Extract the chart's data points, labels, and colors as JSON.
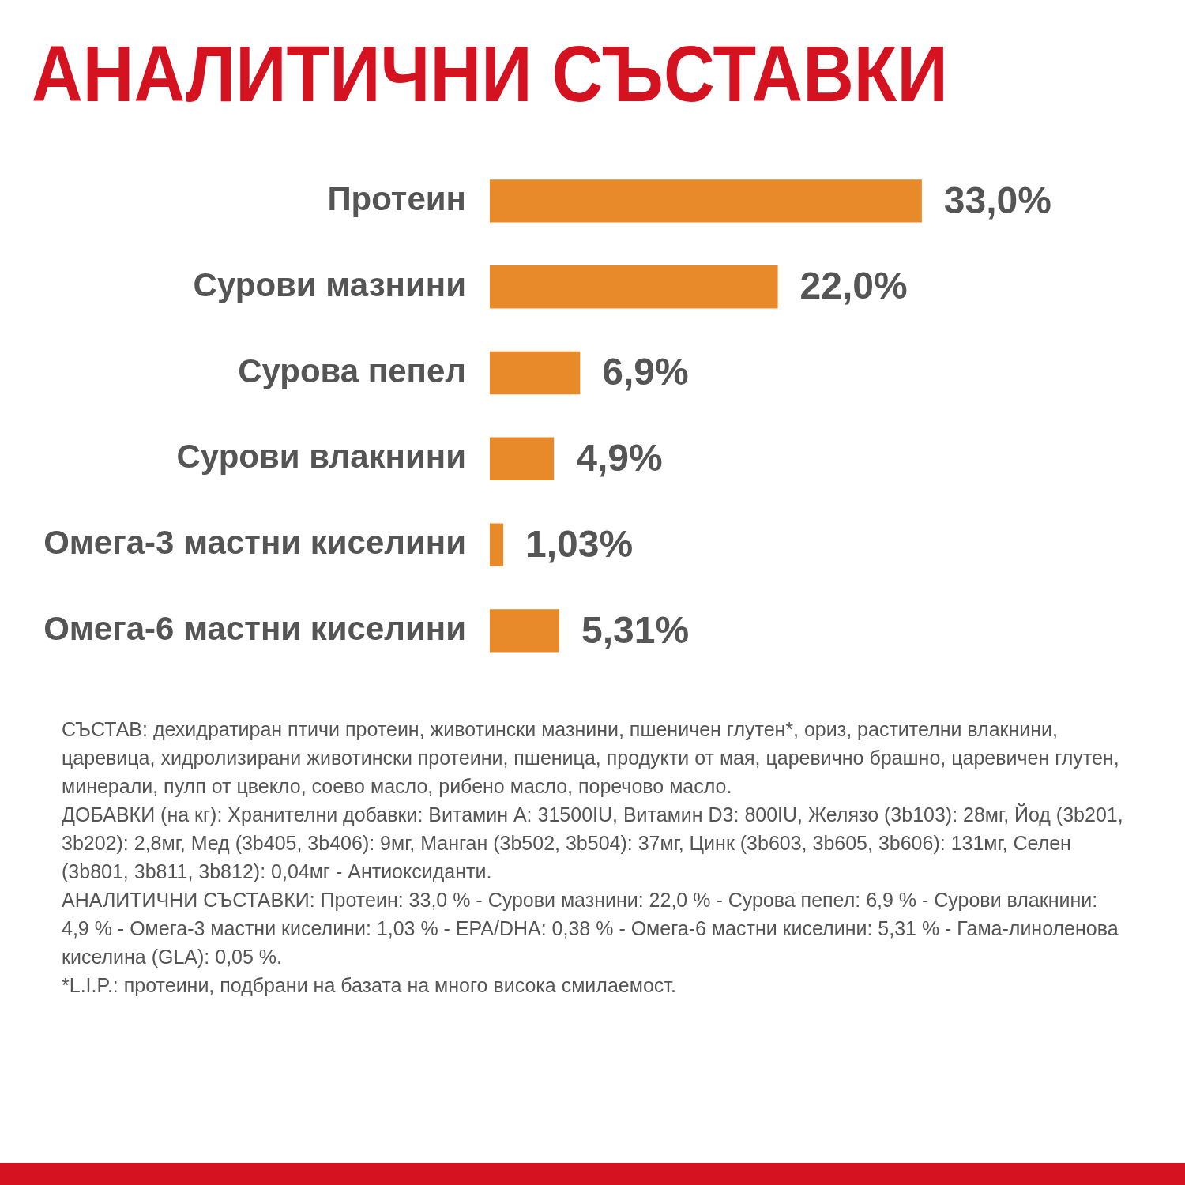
{
  "chart_data": {
    "type": "bar",
    "orientation": "horizontal",
    "title": "АНАЛИТИЧНИ СЪСТАВКИ",
    "categories": [
      "Протеин",
      "Сурови мазнини",
      "Сурова пепел",
      "Сурови влакнини",
      "Омега-3 мастни киселини",
      "Омега-6 мастни киселини"
    ],
    "values": [
      33.0,
      22.0,
      6.9,
      4.9,
      1.03,
      5.31
    ],
    "value_labels": [
      "33,0%",
      "22,0%",
      "6,9%",
      "4,9%",
      "1,03%",
      "5,31%"
    ],
    "color": "#e8892a",
    "legend": false,
    "annotations": [
      "СЪСТАВ: дехидратиран птичи протеин, животински мазнини, пшеничен глутен*, ориз, растителни влакнини, царевица, хидролизирани животински протеини, пшеница, продукти от мая, царевично брашно, царевичен глутен, минерали, пулп от цвекло, соево масло, рибено масло, поречово масло.",
      "ДОБАВКИ (на кг): Хранителни добавки: Витамин A: 31500IU, Витамин D3: 800IU, Желязо (3b103): 28мг, Йод (3b201, 3b202): 2,8мг, Мед (3b405, 3b406): 9мг, Манган (3b502, 3b504): 37мг, Цинк (3b603, 3b605, 3b606): 131мг, Селен (3b801, 3b811, 3b812): 0,04мг - Антиоксиданти.",
      "АНАЛИТИЧНИ СЪСТАВКИ: Протеин: 33,0 % - Сурови мазнини: 22,0 % - Сурова пепел: 6,9 % - Сурови влакнини: 4,9 % - Омега-3 мастни киселини: 1,03 % - EPA/DHA: 0,38 % - Омега-6 мастни киселини: 5,31 % - Гама-линоленова киселина (GLA): 0,05 %.",
      "*L.I.P.: протеини, подбрани на базата на много висока смилаемост."
    ]
  }
}
